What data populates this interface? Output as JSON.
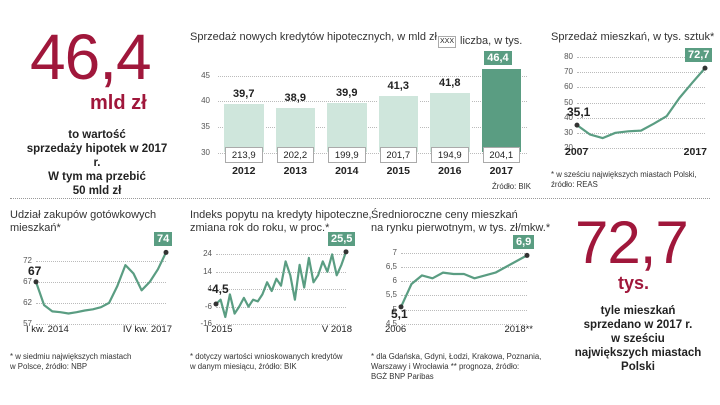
{
  "colors": {
    "accent": "#a0173b",
    "bar": "#cfe6dc",
    "bar_highlight": "#5a9d82",
    "line": "#5a9d82"
  },
  "left_stat": {
    "value": "46,4",
    "unit": "mld zł",
    "caption": [
      "to wartość",
      "sprzedaży hipotek w 2017 r.",
      "W tym ma przebić",
      "50 mld zł"
    ]
  },
  "right_stat": {
    "value": "72,7",
    "unit": "tys.",
    "caption": [
      "tyle mieszkań",
      "sprzedano w 2017 r.",
      "w sześciu",
      "największych miastach Polski"
    ]
  },
  "chart_data": [
    {
      "type": "bar",
      "title": "Sprzedaż nowych kredytów hipotecznych, w mld zł",
      "legend_box": "XXX",
      "legend_label": "liczba, w tys.",
      "categories": [
        "2012",
        "2013",
        "2014",
        "2015",
        "2016",
        "2017"
      ],
      "values": [
        39.7,
        38.9,
        39.9,
        41.3,
        41.8,
        46.4
      ],
      "value_labels": [
        "39,7",
        "38,9",
        "39,9",
        "41,3",
        "41,8",
        "46,4"
      ],
      "counts": [
        "213,9",
        "202,2",
        "199,9",
        "201,7",
        "194,9",
        "204,1"
      ],
      "yticks": [
        "45",
        "40",
        "35",
        "30"
      ],
      "ylim": [
        30,
        48
      ],
      "source": "Źródło: BIK"
    },
    {
      "type": "line",
      "title": "Sprzedaż mieszkań, w tys. sztuk*",
      "x": [
        0,
        1,
        2,
        3,
        4,
        5,
        6,
        7,
        8,
        9,
        10
      ],
      "values": [
        35.1,
        29,
        26.5,
        30,
        31,
        31.5,
        36,
        41,
        53,
        63,
        72.7
      ],
      "start_label": "35,1",
      "end_label": "72,7",
      "yticks": [
        "80",
        "70",
        "60",
        "50",
        "40",
        "30",
        "20"
      ],
      "ylim": [
        20,
        82
      ],
      "xlabels": [
        "2007",
        "2017"
      ],
      "note": [
        "* w sześciu największych miastach Polski,",
        "źródło: REAS"
      ]
    },
    {
      "type": "line",
      "title": [
        "Udział zakupów gotówkowych",
        "mieszkań*"
      ],
      "values": [
        67,
        61.5,
        60,
        59.8,
        59.5,
        59.8,
        60.2,
        60.5,
        61,
        62,
        66,
        71,
        69,
        65,
        67,
        70,
        74
      ],
      "start_label": "67",
      "end_label": "74",
      "yticks": [
        "72",
        "67",
        "62",
        "57"
      ],
      "ylim": [
        57,
        76
      ],
      "xlabels": [
        "I kw. 2014",
        "IV kw. 2017"
      ],
      "note": [
        "* w siedmiu największych miastach",
        "w Polsce, źródło: NBP"
      ]
    },
    {
      "type": "line",
      "title": [
        "Indeks popytu na kredyty hipoteczne,",
        "zmiana rok do roku, w proc.*"
      ],
      "values": [
        -4.5,
        -2,
        -12,
        1,
        -10,
        -6,
        -1,
        -6,
        -2,
        -3,
        1,
        8,
        3,
        10,
        6,
        20,
        12,
        -2,
        18,
        5,
        22,
        8,
        12,
        20,
        14,
        24,
        12,
        18,
        25.5
      ],
      "start_label": "-4,5",
      "end_label": "25,5",
      "yticks": [
        "24",
        "14",
        "4",
        "-6",
        "-16"
      ],
      "ylim": [
        -16,
        30
      ],
      "xlabels": [
        "I 2015",
        "V 2018"
      ],
      "note": [
        "* dotyczy wartości wnioskowanych kredytów",
        "w danym miesiącu, źródło: BIK"
      ]
    },
    {
      "type": "line",
      "title": [
        "Średnioroczne ceny mieszkań",
        "na rynku pierwotnym, w tys. zł/mkw.*"
      ],
      "values": [
        5.1,
        5.9,
        6.2,
        6.1,
        6.3,
        6.25,
        6.25,
        6.1,
        6.2,
        6.3,
        6.5,
        6.7,
        6.9
      ],
      "start_label": "5,1",
      "end_label": "6,9",
      "yticks": [
        "7",
        "6,5",
        "6",
        "5,5",
        "5",
        "4,5"
      ],
      "ylim": [
        4.5,
        7.3
      ],
      "xlabels": [
        "2006",
        "2018**"
      ],
      "note": [
        "* dla Gdańska, Gdyni, Łodzi, Krakowa, Poznania,",
        "Warszawy i Wrocławia ** prognoza, źródło:",
        "BGŻ BNP Paribas"
      ]
    }
  ]
}
